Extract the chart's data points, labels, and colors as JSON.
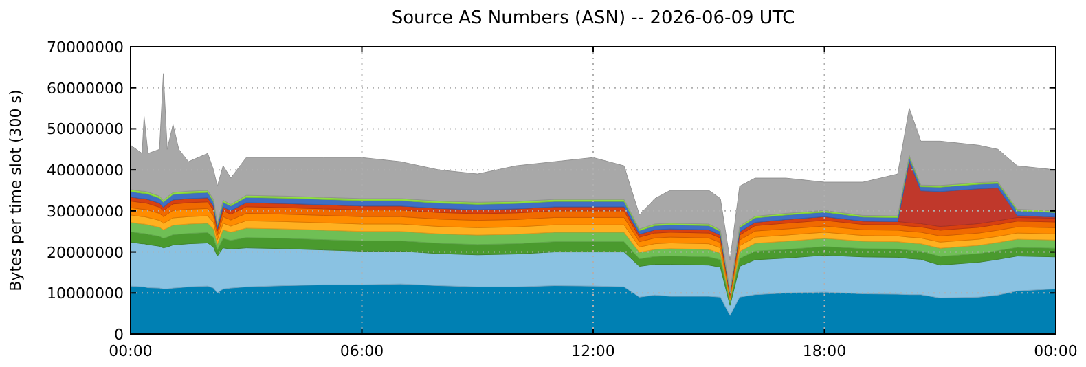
{
  "chart_data": {
    "type": "area",
    "stacked": true,
    "title": "Source AS Numbers (ASN) -- 2026-06-09 UTC",
    "ylabel": "Bytes per time slot (300 s)",
    "x": [
      0,
      0.3,
      0.35,
      0.45,
      0.75,
      0.85,
      0.95,
      1.1,
      1.25,
      1.5,
      2,
      2.15,
      2.25,
      2.4,
      2.6,
      3,
      4,
      5,
      6,
      7,
      8,
      9,
      10,
      11,
      12,
      12.8,
      13.2,
      13.6,
      14,
      15,
      15.3,
      15.55,
      15.8,
      16.2,
      17,
      18,
      19,
      19.9,
      20.2,
      20.5,
      21,
      22,
      22.5,
      23,
      24
    ],
    "xlim": [
      0,
      24
    ],
    "xticks": [
      {
        "value": 0,
        "label": "00:00"
      },
      {
        "value": 6,
        "label": "06:00"
      },
      {
        "value": 12,
        "label": "12:00"
      },
      {
        "value": 18,
        "label": "18:00"
      },
      {
        "value": 24,
        "label": "00:00"
      }
    ],
    "ylim": [
      0,
      70000000
    ],
    "yticks": [
      0,
      10000000,
      20000000,
      30000000,
      40000000,
      50000000,
      60000000,
      70000000
    ],
    "grid": true,
    "series": [
      {
        "color": "#0080b3",
        "values": [
          11700000,
          11500000,
          11500000,
          11300000,
          11200000,
          11000000,
          11000000,
          11200000,
          11300000,
          11500000,
          11700000,
          11200000,
          10000000,
          11000000,
          11200000,
          11500000,
          11800000,
          12000000,
          12000000,
          12200000,
          11800000,
          11500000,
          11500000,
          11800000,
          11700000,
          11500000,
          9000000,
          9500000,
          9200000,
          9200000,
          9000000,
          4500000,
          9000000,
          9600000,
          10000000,
          10200000,
          9800000,
          9700000,
          9600000,
          9600000,
          8800000,
          9000000,
          9500000,
          10500000,
          11000000
        ]
      },
      {
        "color": "#8ac2e2",
        "values": [
          10700000,
          10500000,
          10500000,
          10500000,
          10200000,
          10000000,
          10200000,
          10500000,
          10500000,
          10500000,
          10500000,
          10000000,
          9000000,
          10000000,
          9500000,
          9500000,
          9000000,
          8500000,
          8200000,
          8000000,
          7800000,
          7800000,
          8000000,
          8200000,
          8300000,
          8500000,
          7500000,
          7500000,
          7800000,
          7600000,
          7300000,
          2500000,
          7500000,
          8500000,
          8500000,
          9000000,
          9000000,
          9000000,
          8800000,
          8600000,
          8000000,
          8500000,
          8700000,
          8500000,
          7800000
        ]
      },
      {
        "color": "#4a9a2e",
        "values": [
          2500000,
          2500000,
          2500000,
          2500000,
          2400000,
          2300000,
          2400000,
          2500000,
          2500000,
          2500000,
          2500000,
          2300000,
          1500000,
          2300000,
          2100000,
          2500000,
          2500000,
          2500000,
          2500000,
          2500000,
          2500000,
          2500000,
          2500000,
          2500000,
          2500000,
          2500000,
          1800000,
          1900000,
          2000000,
          2000000,
          1800000,
          600000,
          1900000,
          2100000,
          2100000,
          2100000,
          2000000,
          2000000,
          2000000,
          2000000,
          2100000,
          2100000,
          2100000,
          2100000,
          2100000
        ]
      },
      {
        "color": "#6fbf55",
        "values": [
          2300000,
          2300000,
          2300000,
          2300000,
          2200000,
          2100000,
          2200000,
          2300000,
          2300000,
          2300000,
          2300000,
          2100000,
          1400000,
          2100000,
          2000000,
          2300000,
          2300000,
          2300000,
          2300000,
          2300000,
          2300000,
          2300000,
          2300000,
          2300000,
          2300000,
          2300000,
          1600000,
          1700000,
          1800000,
          1800000,
          1600000,
          600000,
          1700000,
          1900000,
          2000000,
          2000000,
          1800000,
          1800000,
          1800000,
          1800000,
          2000000,
          2000000,
          2000000,
          2000000,
          2000000
        ]
      },
      {
        "color": "#ffb020",
        "values": [
          1800000,
          1800000,
          1800000,
          1800000,
          1700000,
          1600000,
          1700000,
          1800000,
          1800000,
          1800000,
          1800000,
          1600000,
          1100000,
          1600000,
          1500000,
          1800000,
          1800000,
          1800000,
          1800000,
          1800000,
          1800000,
          1800000,
          1800000,
          1800000,
          1800000,
          1800000,
          1300000,
          1400000,
          1400000,
          1400000,
          1300000,
          500000,
          1400000,
          1500000,
          1500000,
          1500000,
          1400000,
          1400000,
          1400000,
          1400000,
          1500000,
          1500000,
          1500000,
          1500000,
          1500000
        ]
      },
      {
        "color": "#ff8c00",
        "values": [
          1800000,
          1800000,
          1800000,
          1800000,
          1700000,
          1600000,
          1700000,
          1800000,
          1800000,
          1800000,
          1800000,
          1600000,
          1100000,
          1600000,
          1500000,
          1800000,
          1800000,
          1800000,
          1800000,
          1800000,
          1800000,
          1800000,
          1800000,
          1800000,
          1800000,
          1800000,
          1300000,
          1400000,
          1400000,
          1400000,
          1300000,
          500000,
          1400000,
          1500000,
          1500000,
          1500000,
          1400000,
          1400000,
          1400000,
          1400000,
          1500000,
          1500000,
          1500000,
          1500000,
          1500000
        ]
      },
      {
        "color": "#f06a00",
        "values": [
          1600000,
          1600000,
          1600000,
          1600000,
          1500000,
          1400000,
          1500000,
          1600000,
          1600000,
          1600000,
          1600000,
          1400000,
          1000000,
          1400000,
          1400000,
          1600000,
          1600000,
          1600000,
          1600000,
          1600000,
          1600000,
          1600000,
          1600000,
          1600000,
          1600000,
          1600000,
          1100000,
          1200000,
          1200000,
          1200000,
          1100000,
          400000,
          1200000,
          1300000,
          1400000,
          1400000,
          1300000,
          1300000,
          1300000,
          1300000,
          1400000,
          1400000,
          1400000,
          1400000,
          1400000
        ]
      },
      {
        "color": "#d84010",
        "values": [
          1000000,
          1000000,
          1000000,
          1000000,
          1000000,
          900000,
          1000000,
          1000000,
          1000000,
          1000000,
          1000000,
          900000,
          600000,
          900000,
          900000,
          1000000,
          1000000,
          1000000,
          1000000,
          1000000,
          1000000,
          1000000,
          1000000,
          1000000,
          1000000,
          1000000,
          700000,
          800000,
          800000,
          800000,
          700000,
          300000,
          800000,
          800000,
          900000,
          900000,
          800000,
          800000,
          800000,
          800000,
          900000,
          900000,
          900000,
          900000,
          900000
        ]
      },
      {
        "color": "#c0382b",
        "values": [
          0,
          0,
          0,
          0,
          0,
          0,
          0,
          0,
          0,
          0,
          0,
          0,
          0,
          0,
          0,
          0,
          0,
          0,
          0,
          0,
          0,
          0,
          0,
          0,
          0,
          0,
          0,
          0,
          0,
          0,
          0,
          0,
          0,
          0,
          0,
          0,
          0,
          0,
          15000000,
          8000000,
          8500000,
          8500000,
          8000000,
          500000,
          300000
        ]
      },
      {
        "color": "#3f6fc4",
        "values": [
          1300000,
          1300000,
          1300000,
          1300000,
          1200000,
          1200000,
          1200000,
          1300000,
          1300000,
          1300000,
          1300000,
          1200000,
          800000,
          1200000,
          1100000,
          1300000,
          1300000,
          1300000,
          1300000,
          1300000,
          1300000,
          1300000,
          1300000,
          1300000,
          1300000,
          1300000,
          900000,
          1000000,
          1000000,
          1000000,
          900000,
          300000,
          1000000,
          1100000,
          1100000,
          1100000,
          1000000,
          1000000,
          1000000,
          1000000,
          1100000,
          1100000,
          1100000,
          1100000,
          1100000
        ]
      },
      {
        "color": "#90e040",
        "values": [
          500000,
          500000,
          500000,
          500000,
          500000,
          500000,
          500000,
          500000,
          500000,
          500000,
          500000,
          500000,
          300000,
          500000,
          400000,
          500000,
          500000,
          500000,
          500000,
          500000,
          500000,
          500000,
          500000,
          500000,
          500000,
          500000,
          400000,
          400000,
          400000,
          400000,
          400000,
          100000,
          400000,
          400000,
          400000,
          400000,
          400000,
          400000,
          400000,
          400000,
          400000,
          400000,
          400000,
          400000,
          400000
        ]
      },
      {
        "color": "#a8a8a8",
        "values": [
          10800000,
          9200000,
          18200000,
          9400000,
          11400000,
          30900000,
          11600000,
          16500000,
          10400000,
          7200000,
          9000000,
          7200000,
          9200000,
          8400000,
          6400000,
          9200000,
          9400000,
          9700000,
          10000000,
          9000000,
          7600000,
          6900000,
          8700000,
          9200000,
          10200000,
          8200000,
          3400000,
          6200000,
          8000000,
          8200000,
          7600000,
          7700000,
          9700000,
          9300000,
          8600000,
          6900000,
          8100000,
          10200000,
          11500000,
          10700000,
          10800000,
          9100000,
          7900000,
          10600000,
          10000000
        ]
      }
    ]
  }
}
